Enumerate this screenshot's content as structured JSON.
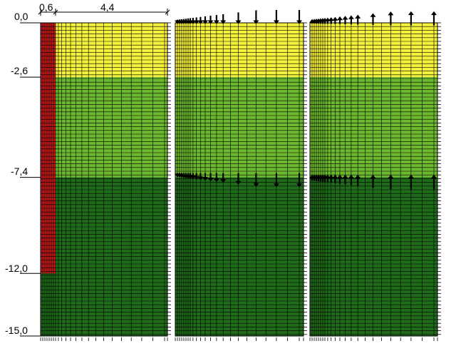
{
  "dimensions": {
    "top_width": "0,6",
    "main_width": "4,4"
  },
  "depth_labels": [
    {
      "text": "0,0",
      "depth": 0.0
    },
    {
      "text": "-2,6",
      "depth": 2.6
    },
    {
      "text": "-7,4",
      "depth": 7.4
    },
    {
      "text": "-12,0",
      "depth": 12.0
    },
    {
      "text": "-15,0",
      "depth": 15.0
    }
  ],
  "model": {
    "total_depth": 15.0,
    "pile_bottom_depth": 12.0,
    "layers": [
      {
        "id": "layer-1",
        "top": 0.0,
        "bottom": 2.6,
        "color": "#f4f13c"
      },
      {
        "id": "layer-2",
        "top": 2.6,
        "bottom": 7.4,
        "color": "#6cb82e"
      },
      {
        "id": "layer-3",
        "top": 7.4,
        "bottom": 15.0,
        "color": "#1f6b1a"
      }
    ],
    "pile_color": "#c41a1a",
    "grid_color": "#000000",
    "load_color": "#000000"
  },
  "panels": [
    {
      "id": "geometry-panel",
      "shows_pile": true,
      "loads": "none"
    },
    {
      "id": "load-panel-down",
      "shows_pile": false,
      "loads": "down"
    },
    {
      "id": "load-panel-up",
      "shows_pile": false,
      "loads": "up"
    }
  ]
}
